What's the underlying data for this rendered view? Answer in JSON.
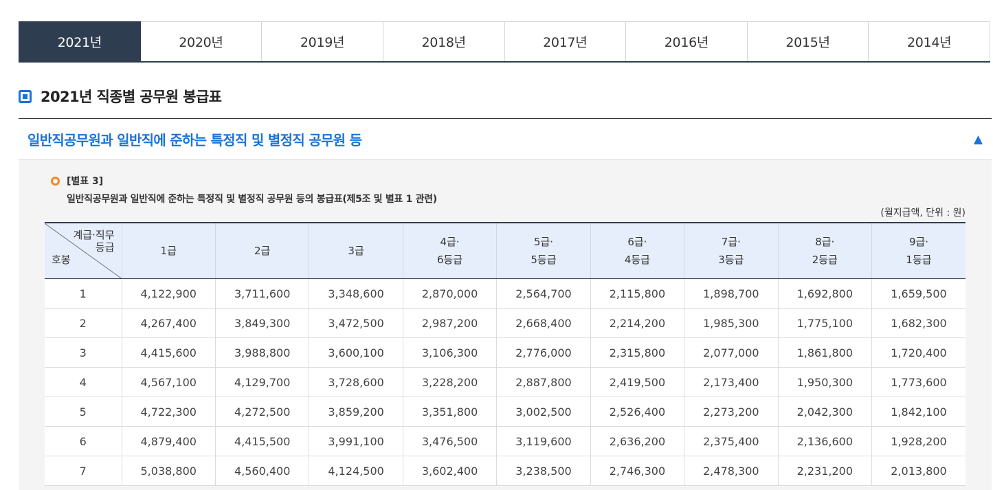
{
  "tabs": [
    {
      "label": "2021년",
      "active": true
    },
    {
      "label": "2020년"
    },
    {
      "label": "2019년"
    },
    {
      "label": "2018년"
    },
    {
      "label": "2017년"
    },
    {
      "label": "2016년"
    },
    {
      "label": "2015년"
    },
    {
      "label": "2014년"
    }
  ],
  "section_title": "2021년 직종별 공무원 봉급표",
  "accordion": {
    "title": "일반직공무원과 일반직에 준하는 특정직 및 별정직 공무원 등",
    "arrow": "▲"
  },
  "note": {
    "label": "[별표 3]",
    "description": "일반직공무원과 일반직에 준하는 특정직 및 별정직 공무원 등의 봉급표(제5조 및 별표 1 관련)",
    "unit": "(월지급액, 단위 : 원)"
  },
  "table": {
    "corner_top_line1": "계급·직무",
    "corner_top_line2": "등급",
    "corner_bottom": "호봉",
    "headers": [
      [
        "1급",
        ""
      ],
      [
        "2급",
        ""
      ],
      [
        "3급",
        ""
      ],
      [
        "4급·",
        "6등급"
      ],
      [
        "5급·",
        "5등급"
      ],
      [
        "6급·",
        "4등급"
      ],
      [
        "7급·",
        "3등급"
      ],
      [
        "8급·",
        "2등급"
      ],
      [
        "9급·",
        "1등급"
      ]
    ],
    "rows": [
      [
        "1",
        "4,122,900",
        "3,711,600",
        "3,348,600",
        "2,870,000",
        "2,564,700",
        "2,115,800",
        "1,898,700",
        "1,692,800",
        "1,659,500"
      ],
      [
        "2",
        "4,267,400",
        "3,849,300",
        "3,472,500",
        "2,987,200",
        "2,668,400",
        "2,214,200",
        "1,985,300",
        "1,775,100",
        "1,682,300"
      ],
      [
        "3",
        "4,415,600",
        "3,988,800",
        "3,600,100",
        "3,106,300",
        "2,776,000",
        "2,315,800",
        "2,077,000",
        "1,861,800",
        "1,720,400"
      ],
      [
        "4",
        "4,567,100",
        "4,129,700",
        "3,728,600",
        "3,228,200",
        "2,887,800",
        "2,419,500",
        "2,173,400",
        "1,950,300",
        "1,773,600"
      ],
      [
        "5",
        "4,722,300",
        "4,272,500",
        "3,859,200",
        "3,351,800",
        "3,002,500",
        "2,526,400",
        "2,273,200",
        "2,042,300",
        "1,842,100"
      ],
      [
        "6",
        "4,879,400",
        "4,415,500",
        "3,991,100",
        "3,476,500",
        "3,119,600",
        "2,636,200",
        "2,375,400",
        "2,136,600",
        "1,928,200"
      ],
      [
        "7",
        "5,038,800",
        "4,560,400",
        "4,124,500",
        "3,602,400",
        "3,238,500",
        "2,746,300",
        "2,478,300",
        "2,231,200",
        "2,013,800"
      ]
    ]
  }
}
